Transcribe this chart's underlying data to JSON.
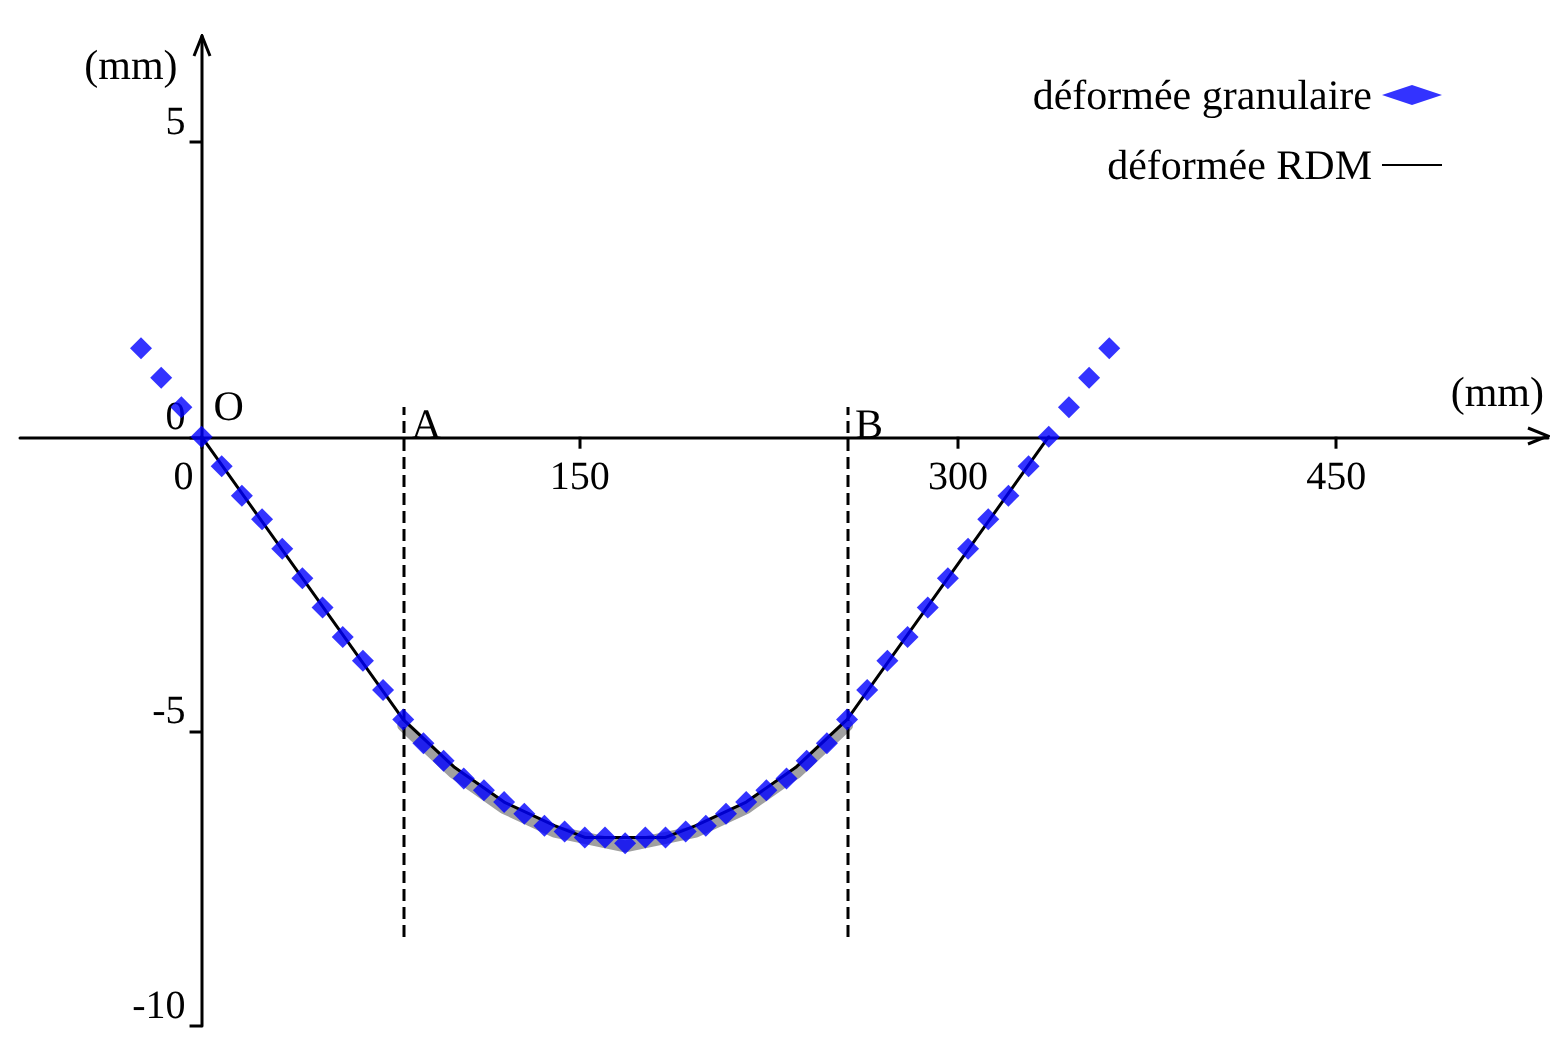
{
  "chart_data": {
    "type": "scatter",
    "xlabel": "(mm)",
    "ylabel": "(mm)",
    "xlim": [
      -72,
      534
    ],
    "ylim": [
      -10,
      6.8
    ],
    "xticks": [
      0,
      150,
      300,
      450
    ],
    "yticks": [
      -10,
      -5,
      0,
      5
    ],
    "grid": false,
    "legend": "top right",
    "series": [
      {
        "name": "déformée granulaire",
        "marker": "diamond",
        "color": "#0000ff",
        "x": [
          -24,
          -16,
          -8,
          0,
          8,
          16,
          24,
          32,
          40,
          48,
          56,
          64,
          72,
          80,
          88,
          96,
          104,
          112,
          120,
          128,
          136,
          144,
          152,
          160,
          168,
          176,
          184,
          192,
          200,
          208,
          216,
          224,
          232,
          240,
          248,
          256,
          264,
          272,
          280,
          288,
          296,
          304,
          312,
          320,
          328,
          336,
          344,
          352,
          360
        ],
        "values": [
          1.5,
          1.0,
          0.5,
          0,
          -0.5,
          -1.0,
          -1.4,
          -1.9,
          -2.4,
          -2.9,
          -3.4,
          -3.8,
          -4.3,
          -4.8,
          -5.2,
          -5.5,
          -5.8,
          -6.0,
          -6.2,
          -6.4,
          -6.6,
          -6.7,
          -6.8,
          -6.8,
          -6.9,
          -6.8,
          -6.8,
          -6.7,
          -6.6,
          -6.4,
          -6.2,
          -6.0,
          -5.8,
          -5.5,
          -5.2,
          -4.8,
          -4.3,
          -3.8,
          -3.4,
          -2.9,
          -2.4,
          -1.9,
          -1.4,
          -1.0,
          -0.5,
          0,
          0.5,
          1.0,
          1.5
        ]
      },
      {
        "name": "déformée RDM",
        "type": "line",
        "marker": "none",
        "line_style": "solid",
        "color": "#000000",
        "x": [
          0,
          40,
          80,
          100,
          120,
          140,
          152,
          184,
          196,
          216,
          236,
          256,
          296,
          336
        ],
        "values": [
          0,
          -2.4,
          -4.8,
          -5.6,
          -6.2,
          -6.6,
          -6.8,
          -6.8,
          -6.6,
          -6.2,
          -5.6,
          -4.8,
          -2.4,
          0
        ]
      },
      {
        "type": "line",
        "marker": "none",
        "line_style": "solid",
        "color": "#a0a0a0",
        "x": [
          80,
          100,
          120,
          140,
          168,
          196,
          216,
          236,
          256
        ],
        "values": [
          -4.9,
          -5.7,
          -6.3,
          -6.7,
          -6.95,
          -6.7,
          -6.3,
          -5.7,
          -4.9
        ]
      }
    ],
    "ref_lines": [
      {
        "axis": "x",
        "value": 80,
        "label": "A",
        "line_style": "dashed",
        "color": "#000000"
      },
      {
        "axis": "x",
        "value": 256,
        "label": "B",
        "line_style": "dashed",
        "color": "#000000"
      }
    ],
    "annotations": [
      {
        "text": "O",
        "x": 0,
        "y": 0
      }
    ]
  }
}
